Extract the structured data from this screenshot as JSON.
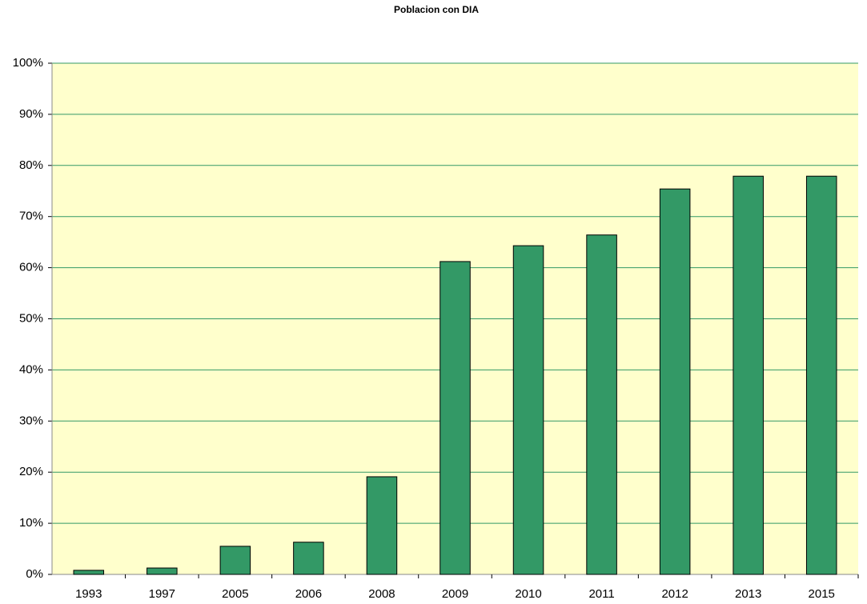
{
  "chart_data": {
    "type": "bar",
    "title": "Poblacion con DIA",
    "categories": [
      "1993",
      "1997",
      "2005",
      "2006",
      "2008",
      "2009",
      "2010",
      "2011",
      "2012",
      "2013",
      "2015"
    ],
    "values": [
      0.8,
      1.25,
      5.5,
      6.3,
      19.1,
      61.2,
      64.3,
      66.4,
      75.4,
      77.9,
      77.9
    ],
    "color": "#339966",
    "ylim": [
      0,
      100
    ],
    "yticks": [
      {
        "value": 0,
        "label": "0%"
      },
      {
        "value": 10,
        "label": "10%"
      },
      {
        "value": 20,
        "label": "20%"
      },
      {
        "value": 30,
        "label": "30%"
      },
      {
        "value": 40,
        "label": "40%"
      },
      {
        "value": 50,
        "label": "50%"
      },
      {
        "value": 60,
        "label": "60%"
      },
      {
        "value": 70,
        "label": "70%"
      },
      {
        "value": 80,
        "label": "80%"
      },
      {
        "value": 90,
        "label": "90%"
      },
      {
        "value": 100,
        "label": "100%"
      }
    ],
    "grid": true
  }
}
